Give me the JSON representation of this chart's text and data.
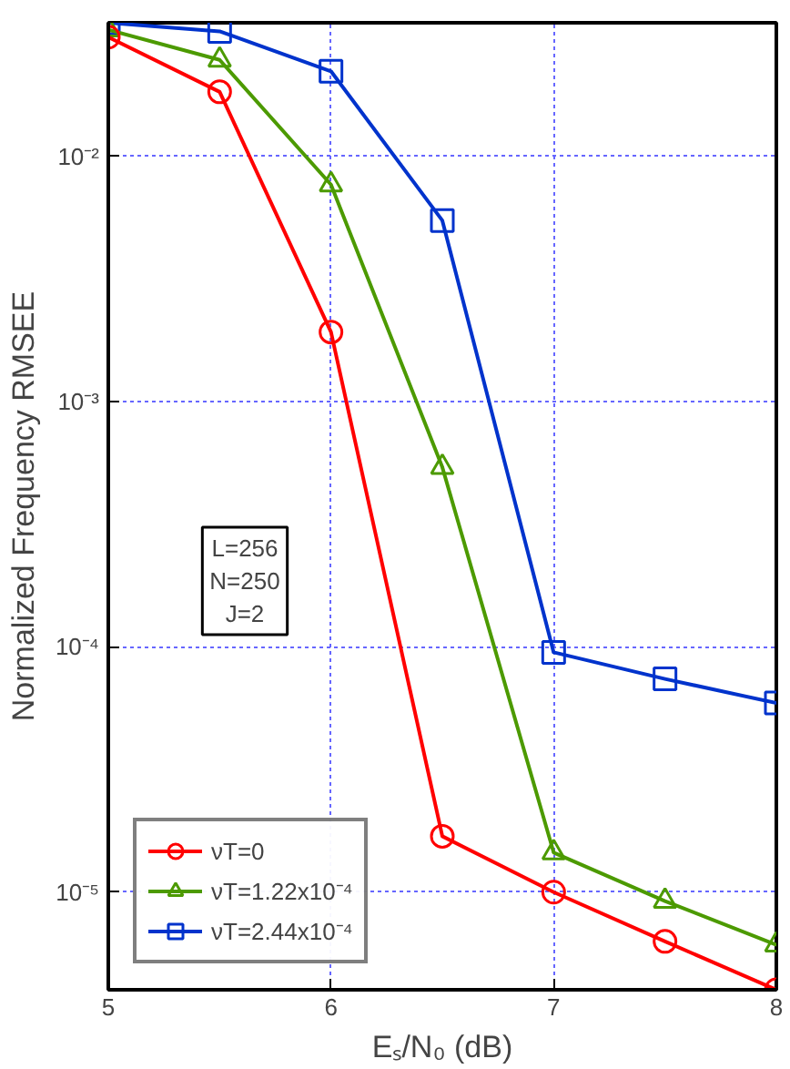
{
  "chart_data": {
    "type": "line",
    "xlabel": "Eₛ/N₀ (dB)",
    "ylabel": "Normalized Frequency RMSEE",
    "x": [
      5,
      5.5,
      6,
      6.5,
      7,
      7.5,
      8
    ],
    "series": [
      {
        "name": "νT=0",
        "color": "#ff0000",
        "marker": "circle",
        "values": [
          0.0306,
          0.0183,
          0.00192,
          1.69e-05,
          1e-05,
          6.3e-06,
          4e-06
        ]
      },
      {
        "name": "νT=1.22x10⁻⁴",
        "color": "#4c9a00",
        "marker": "triangle",
        "values": [
          0.0328,
          0.0247,
          0.00766,
          0.00054,
          1.45e-05,
          9.2e-06,
          6.1e-06
        ]
      },
      {
        "name": "νT=2.44x10⁻⁴",
        "color": "#0033cc",
        "marker": "square",
        "values": [
          0.035,
          0.0323,
          0.0222,
          0.00547,
          9.5e-05,
          7.4e-05,
          5.9e-05
        ]
      }
    ],
    "log": "y",
    "xlim": [
      5,
      8
    ],
    "ylim": [
      4e-06,
      0.035
    ],
    "xticks": [
      5,
      6,
      7,
      8
    ],
    "yticks": [
      {
        "value": 1e-05,
        "label": "10⁻⁵"
      },
      {
        "value": 0.0001,
        "label": "10⁻⁴"
      },
      {
        "value": 0.001,
        "label": "10⁻³"
      },
      {
        "value": 0.01,
        "label": "10⁻²"
      }
    ],
    "grid": true,
    "legend": "bottom left",
    "line_style": "solid",
    "annotations": [
      "L=256\nN=250\nJ=2"
    ]
  }
}
